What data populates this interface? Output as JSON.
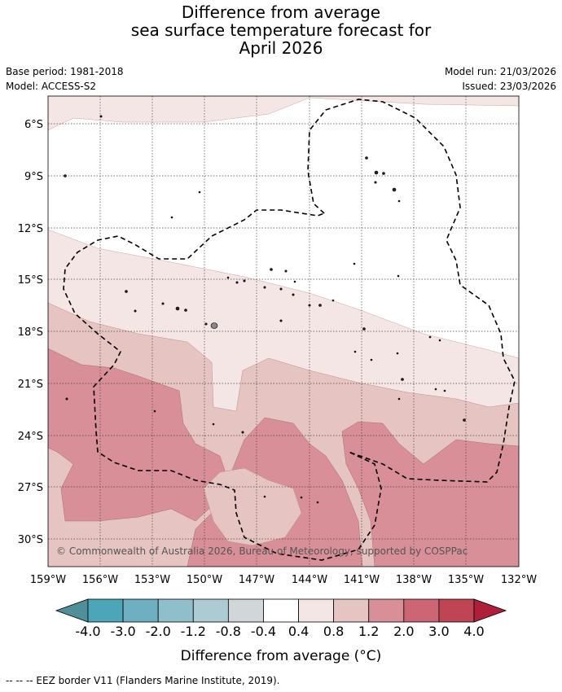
{
  "title": {
    "line1": "Difference from average",
    "line2": "sea surface temperature forecast for",
    "line3": "April 2026"
  },
  "meta": {
    "base_period": "Base period: 1981-2018",
    "model": "Model: ACCESS-S2",
    "model_run": "Model run: 21/03/2026",
    "issued": "Issued: 23/03/2026"
  },
  "map": {
    "lat_labels": [
      "6°S",
      "9°S",
      "12°S",
      "15°S",
      "18°S",
      "21°S",
      "24°S",
      "27°S",
      "30°S"
    ],
    "lon_labels": [
      "159°W",
      "156°W",
      "153°W",
      "150°W",
      "147°W",
      "144°W",
      "141°W",
      "138°W",
      "135°W",
      "132°W"
    ],
    "copyright": "© Commonwealth of Australia 2026, Bureau of Meteorology, supported by COSPPac"
  },
  "legend": {
    "tick_labels": [
      "-4.0",
      "-3.0",
      "-2.0",
      "-1.2",
      "-0.8",
      "-0.4",
      "0.4",
      "0.8",
      "1.2",
      "2.0",
      "3.0",
      "4.0"
    ],
    "colors": [
      "#4e8f9a",
      "#4ba6b7",
      "#6eb0c1",
      "#90bfcc",
      "#adcbd2",
      "#d1d7d8",
      "#ffffff",
      "#f5e6e6",
      "#e6c4c2",
      "#d88f98",
      "#cd6674",
      "#bf4555",
      "#b01f3a"
    ],
    "label": "Difference from average (°C)"
  },
  "footer": {
    "eez_note": "-- -- -- EEZ border V11 (Flanders Marine Institute, 2019)."
  }
}
